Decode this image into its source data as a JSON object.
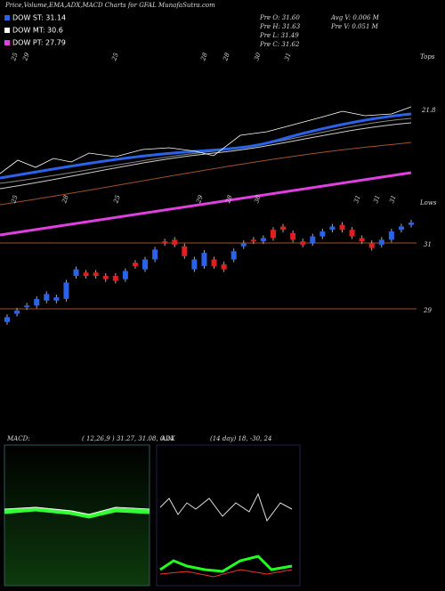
{
  "header": {
    "title": "Price,Volume,EMA,ADX,MACD Charts for GFAL MunafaSutra.com",
    "legend": [
      "DOW ST: 31.14",
      "DOW MT: 30.6",
      "DOW PT: 27.79"
    ],
    "info": [
      "Pre  O: 31.60",
      "Pre  H: 31.63",
      "Pre  L: 31.49",
      "Pre  C: 31.62",
      "Avg V: 0.006  M",
      "Pre  V: 0.051 M"
    ],
    "tops": "Tops",
    "lows": "Lows",
    "ema_label": "21.8",
    "top_dates": [
      "25",
      "29",
      "25",
      "28",
      "28",
      "30",
      "31"
    ],
    "low_dates": [
      "25",
      "28",
      "25",
      "29",
      "28",
      "30",
      "31",
      "31",
      "31"
    ]
  },
  "macd": {
    "label": "MACD:",
    "params": "( 12,26,9 ) 31.27, 31.08, 0.24"
  },
  "adx": {
    "label": "ADX",
    "params": "(14  day) 18, -30, 24"
  },
  "chart_data": {
    "type": "candlestick",
    "open": [
      28.6,
      28.85,
      29.05,
      29.1,
      29.25,
      29.25,
      29.3,
      30.0,
      30.1,
      30.1,
      30.0,
      30.0,
      29.9,
      30.4,
      30.2,
      30.5,
      31.05,
      31.1,
      30.9,
      30.2,
      30.3,
      30.5,
      30.35,
      30.5,
      30.9,
      31.1,
      31.05,
      31.4,
      31.5,
      31.3,
      31.05,
      31.0,
      31.2,
      31.4,
      31.55,
      31.4,
      31.15,
      31.0,
      30.95,
      31.1,
      31.4,
      31.55
    ],
    "close": [
      28.75,
      28.95,
      29.1,
      29.3,
      29.45,
      29.35,
      29.8,
      30.2,
      30.0,
      30.0,
      29.9,
      29.85,
      30.15,
      30.3,
      30.5,
      30.8,
      31.0,
      30.95,
      30.6,
      30.5,
      30.7,
      30.3,
      30.2,
      30.75,
      31.0,
      31.05,
      31.15,
      31.15,
      31.4,
      31.1,
      30.95,
      31.2,
      31.35,
      31.5,
      31.4,
      31.2,
      31.05,
      30.85,
      31.1,
      31.35,
      31.5,
      31.62
    ],
    "up_color": "#2a63e8",
    "down_color": "#e02020",
    "ylim": [
      28,
      32
    ],
    "yticks": [
      29,
      31
    ]
  }
}
